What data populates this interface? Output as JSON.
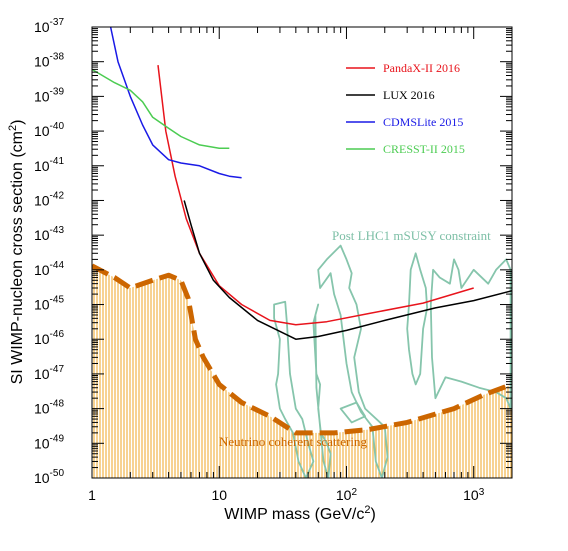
{
  "chart_data": {
    "type": "line",
    "title": "",
    "xlabel": "WIMP mass (GeV/c²)",
    "ylabel": "SI WIMP-nucleon cross section (cm²)",
    "x_scale": "log",
    "y_scale": "log",
    "xlim": [
      1,
      2000
    ],
    "ylim": [
      1e-50,
      1e-37
    ],
    "grid": false,
    "legend_position": "top-right",
    "x_ticks": [
      {
        "value": 1,
        "base": "1",
        "exp": ""
      },
      {
        "value": 10,
        "base": "10",
        "exp": ""
      },
      {
        "value": 100,
        "base": "10",
        "exp": "2"
      },
      {
        "value": 1000,
        "base": "10",
        "exp": "3"
      }
    ],
    "y_ticks": [
      {
        "value": -37,
        "base": "10",
        "exp": "-37"
      },
      {
        "value": -38,
        "base": "10",
        "exp": "-38"
      },
      {
        "value": -39,
        "base": "10",
        "exp": "-39"
      },
      {
        "value": -40,
        "base": "10",
        "exp": "-40"
      },
      {
        "value": -41,
        "base": "10",
        "exp": "-41"
      },
      {
        "value": -42,
        "base": "10",
        "exp": "-42"
      },
      {
        "value": -43,
        "base": "10",
        "exp": "-43"
      },
      {
        "value": -44,
        "base": "10",
        "exp": "-44"
      },
      {
        "value": -45,
        "base": "10",
        "exp": "-45"
      },
      {
        "value": -46,
        "base": "10",
        "exp": "-46"
      },
      {
        "value": -47,
        "base": "10",
        "exp": "-47"
      },
      {
        "value": -48,
        "base": "10",
        "exp": "-48"
      },
      {
        "value": -49,
        "base": "10",
        "exp": "-49"
      },
      {
        "value": -50,
        "base": "10",
        "exp": "-50"
      }
    ],
    "series": [
      {
        "name": "PandaX-II 2016",
        "color": "#e8141c",
        "style": "solid",
        "points": [
          [
            3.3,
            8e-39
          ],
          [
            3.8,
            1e-40
          ],
          [
            4.5,
            5e-42
          ],
          [
            5.5,
            3e-43
          ],
          [
            7,
            3e-44
          ],
          [
            10,
            3.5e-45
          ],
          [
            15,
            1e-45
          ],
          [
            25,
            3.5e-46
          ],
          [
            40,
            2.6e-46
          ],
          [
            70,
            3.2e-46
          ],
          [
            150,
            5.5e-46
          ],
          [
            400,
            1.1e-45
          ],
          [
            1000,
            3e-45
          ]
        ]
      },
      {
        "name": "LUX 2016",
        "color": "#000000",
        "style": "solid",
        "points": [
          [
            5.3,
            1e-42
          ],
          [
            6,
            2e-43
          ],
          [
            7,
            3e-44
          ],
          [
            9,
            5e-45
          ],
          [
            12,
            1.6e-45
          ],
          [
            20,
            3.5e-46
          ],
          [
            40,
            1e-46
          ],
          [
            60,
            1.2e-46
          ],
          [
            100,
            1.8e-46
          ],
          [
            200,
            3.5e-46
          ],
          [
            500,
            8e-46
          ],
          [
            1000,
            1.3e-45
          ],
          [
            2000,
            2.5e-45
          ]
        ]
      },
      {
        "name": "CDMSLite 2015",
        "color": "#1a1ae6",
        "style": "solid",
        "points": [
          [
            1.4,
            1e-37
          ],
          [
            1.6,
            1e-38
          ],
          [
            2,
            1e-39
          ],
          [
            2.5,
            1.5e-40
          ],
          [
            3,
            4e-41
          ],
          [
            4,
            1.5e-41
          ],
          [
            5,
            1.2e-41
          ],
          [
            7,
            1e-41
          ],
          [
            10,
            6e-42
          ],
          [
            12,
            5e-42
          ],
          [
            15,
            4.5e-42
          ]
        ]
      },
      {
        "name": "CRESST-II 2015",
        "color": "#4ccc52",
        "style": "solid",
        "points": [
          [
            1,
            6e-39
          ],
          [
            1.5,
            2.5e-39
          ],
          [
            2,
            1.5e-39
          ],
          [
            2.5,
            7e-40
          ],
          [
            3,
            2.5e-40
          ],
          [
            4,
            1.2e-40
          ],
          [
            5,
            7e-41
          ],
          [
            7,
            4e-41
          ],
          [
            10,
            3.2e-41
          ],
          [
            12,
            3.2e-41
          ]
        ]
      },
      {
        "name": "Neutrino coherent scattering",
        "color": "#cc6600",
        "style": "dashed",
        "points": [
          [
            1,
            1.3e-44
          ],
          [
            1.5,
            6e-45
          ],
          [
            2,
            3e-45
          ],
          [
            3,
            5e-45
          ],
          [
            4,
            7e-45
          ],
          [
            5,
            5e-45
          ],
          [
            5.7,
            1.5e-45
          ],
          [
            6.5,
            1e-46
          ],
          [
            7.5,
            3e-47
          ],
          [
            10,
            5e-48
          ],
          [
            15,
            1.5e-48
          ],
          [
            25,
            6e-49
          ],
          [
            40,
            2e-49
          ],
          [
            80,
            2e-49
          ],
          [
            150,
            2.5e-49
          ],
          [
            300,
            4e-49
          ],
          [
            700,
            1e-48
          ],
          [
            1200,
            2.5e-48
          ],
          [
            2000,
            5e-48
          ]
        ]
      }
    ],
    "annotations": [
      {
        "text": "Post LHC1 mSUSY constraint",
        "color": "#7dbfa6"
      },
      {
        "text": "Neutrino coherent scattering",
        "color": "#cc6600"
      }
    ],
    "msusy_color": "#86c5ac",
    "fill_color": "#f2b54a"
  }
}
